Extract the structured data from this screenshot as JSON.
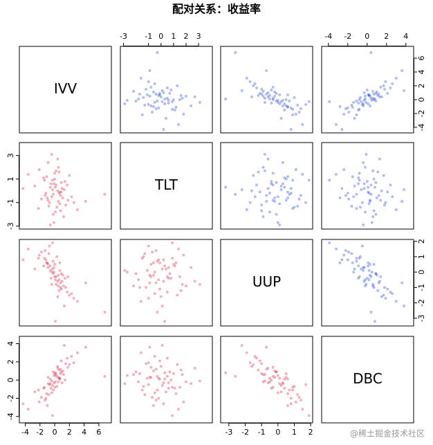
{
  "chart_data": {
    "type": "scatter_matrix",
    "title": "配对关系：收益率",
    "upper_color": "#1f3fd6",
    "lower_color": "#d61f3f",
    "watermark": "@稀土掘金技术社区",
    "variables": [
      {
        "name": "IVV",
        "lim": [
          -4.8,
          7.7
        ],
        "xticks": [
          -4,
          -2,
          0,
          2,
          4,
          6
        ],
        "yticks": [
          -4,
          -2,
          0,
          2,
          4,
          6
        ],
        "values": [
          0.2,
          -1.1,
          0.8,
          -0.3,
          1.5,
          -2.1,
          0.5,
          -0.6,
          2.3,
          -1.4,
          0.1,
          0.9,
          -0.2,
          1.2,
          -0.9,
          0.4,
          -3.6,
          0.7,
          -0.5,
          3.1,
          0.0,
          -1.8,
          1.0,
          -0.1,
          0.6,
          -1.2,
          1.8,
          -0.4,
          0.3,
          6.8,
          -2.7,
          0.9,
          -0.7,
          1.4,
          -0.2,
          2.0,
          -1.0,
          0.5,
          -0.8,
          4.2,
          0.1,
          -1.5,
          1.1,
          -0.3,
          0.6,
          -2.2,
          1.7,
          -0.6,
          0.2,
          -1.3,
          2.6,
          -0.1,
          0.8,
          -4.3,
          0.4,
          -0.9,
          1.3,
          -0.4,
          0.0,
          0.7
        ]
      },
      {
        "name": "TLT",
        "lim": [
          -3.25,
          4.1
        ],
        "xticks": [
          -3,
          -1,
          0,
          1,
          2,
          3
        ],
        "yticks": [
          -3,
          -1,
          1,
          3
        ],
        "values": [
          0.5,
          1.2,
          -0.4,
          0.1,
          -1.2,
          1.8,
          -0.9,
          0.3,
          -0.5,
          0.9,
          -1.8,
          0.7,
          -0.3,
          -2.2,
          2.4,
          0.0,
          1.4,
          -1.1,
          0.6,
          -1.6,
          1.0,
          -0.7,
          0.2,
          -2.7,
          1.6,
          -0.2,
          -0.8,
          3.1,
          -1.4,
          -0.3,
          0.4,
          -0.1,
          -1.0,
          0.8,
          -2.0,
          1.3,
          -0.6,
          2.0,
          -1.3,
          -0.9,
          0.3,
          1.1,
          -0.6,
          0.9,
          -0.2,
          -1.5,
          0.5,
          -2.9,
          1.7,
          -0.4,
          -1.0,
          0.6,
          -1.7,
          0.2,
          2.7,
          -0.8,
          0.1,
          -0.5,
          1.5,
          -0.1
        ]
      },
      {
        "name": "UUP",
        "lim": [
          -3.5,
          2.12
        ],
        "xticks": [
          -3,
          -2,
          -1,
          0,
          1,
          2
        ],
        "yticks": [
          -3,
          -2,
          -1,
          0,
          1,
          2
        ],
        "values": [
          -0.3,
          0.6,
          -0.7,
          0.2,
          -1.0,
          1.1,
          -0.2,
          0.4,
          -1.4,
          0.9,
          -0.5,
          -0.1,
          0.7,
          -0.9,
          0.3,
          -1.6,
          1.5,
          0.1,
          -0.4,
          -1.9,
          0.5,
          1.3,
          -0.6,
          0.0,
          -1.2,
          0.8,
          -0.3,
          -0.8,
          1.0,
          -2.6,
          0.2,
          -1.1,
          1.7,
          -0.4,
          -0.1,
          -1.5,
          0.6,
          -0.9,
          1.2,
          -0.7,
          -3.2,
          0.4,
          -0.2,
          1.9,
          -0.5,
          0.9,
          -1.3,
          0.1,
          -0.8,
          1.4,
          -1.7,
          0.3,
          -1.0,
          0.8,
          -0.6,
          0.5,
          -2.2,
          0.0,
          -0.3,
          0.6
        ]
      },
      {
        "name": "DBC",
        "lim": [
          -4.7,
          4.8
        ],
        "xticks": [
          -4,
          -2,
          0,
          2,
          4
        ],
        "yticks": [
          -4,
          -2,
          0,
          2,
          4
        ],
        "values": [
          0.4,
          -1.5,
          1.2,
          -0.6,
          1.8,
          -2.4,
          0.3,
          0.1,
          2.6,
          -0.8,
          -0.2,
          0.9,
          -1.1,
          0.6,
          -0.4,
          1.5,
          -3.2,
          0.2,
          -0.9,
          3.0,
          0.7,
          -1.9,
          -0.3,
          0.5,
          1.1,
          -2.0,
          1.4,
          -0.1,
          -0.7,
          0.4,
          -1.3,
          2.1,
          -0.5,
          0.0,
          0.9,
          1.7,
          -2.8,
          -0.2,
          -1.6,
          3.6,
          0.8,
          -0.9,
          1.0,
          -3.9,
          0.2,
          -1.1,
          2.4,
          -0.4,
          0.6,
          -2.2,
          1.9,
          -0.3,
          0.7,
          -2.6,
          1.3,
          0.3,
          3.8,
          -1.4,
          -0.8,
          0.1
        ]
      }
    ]
  }
}
